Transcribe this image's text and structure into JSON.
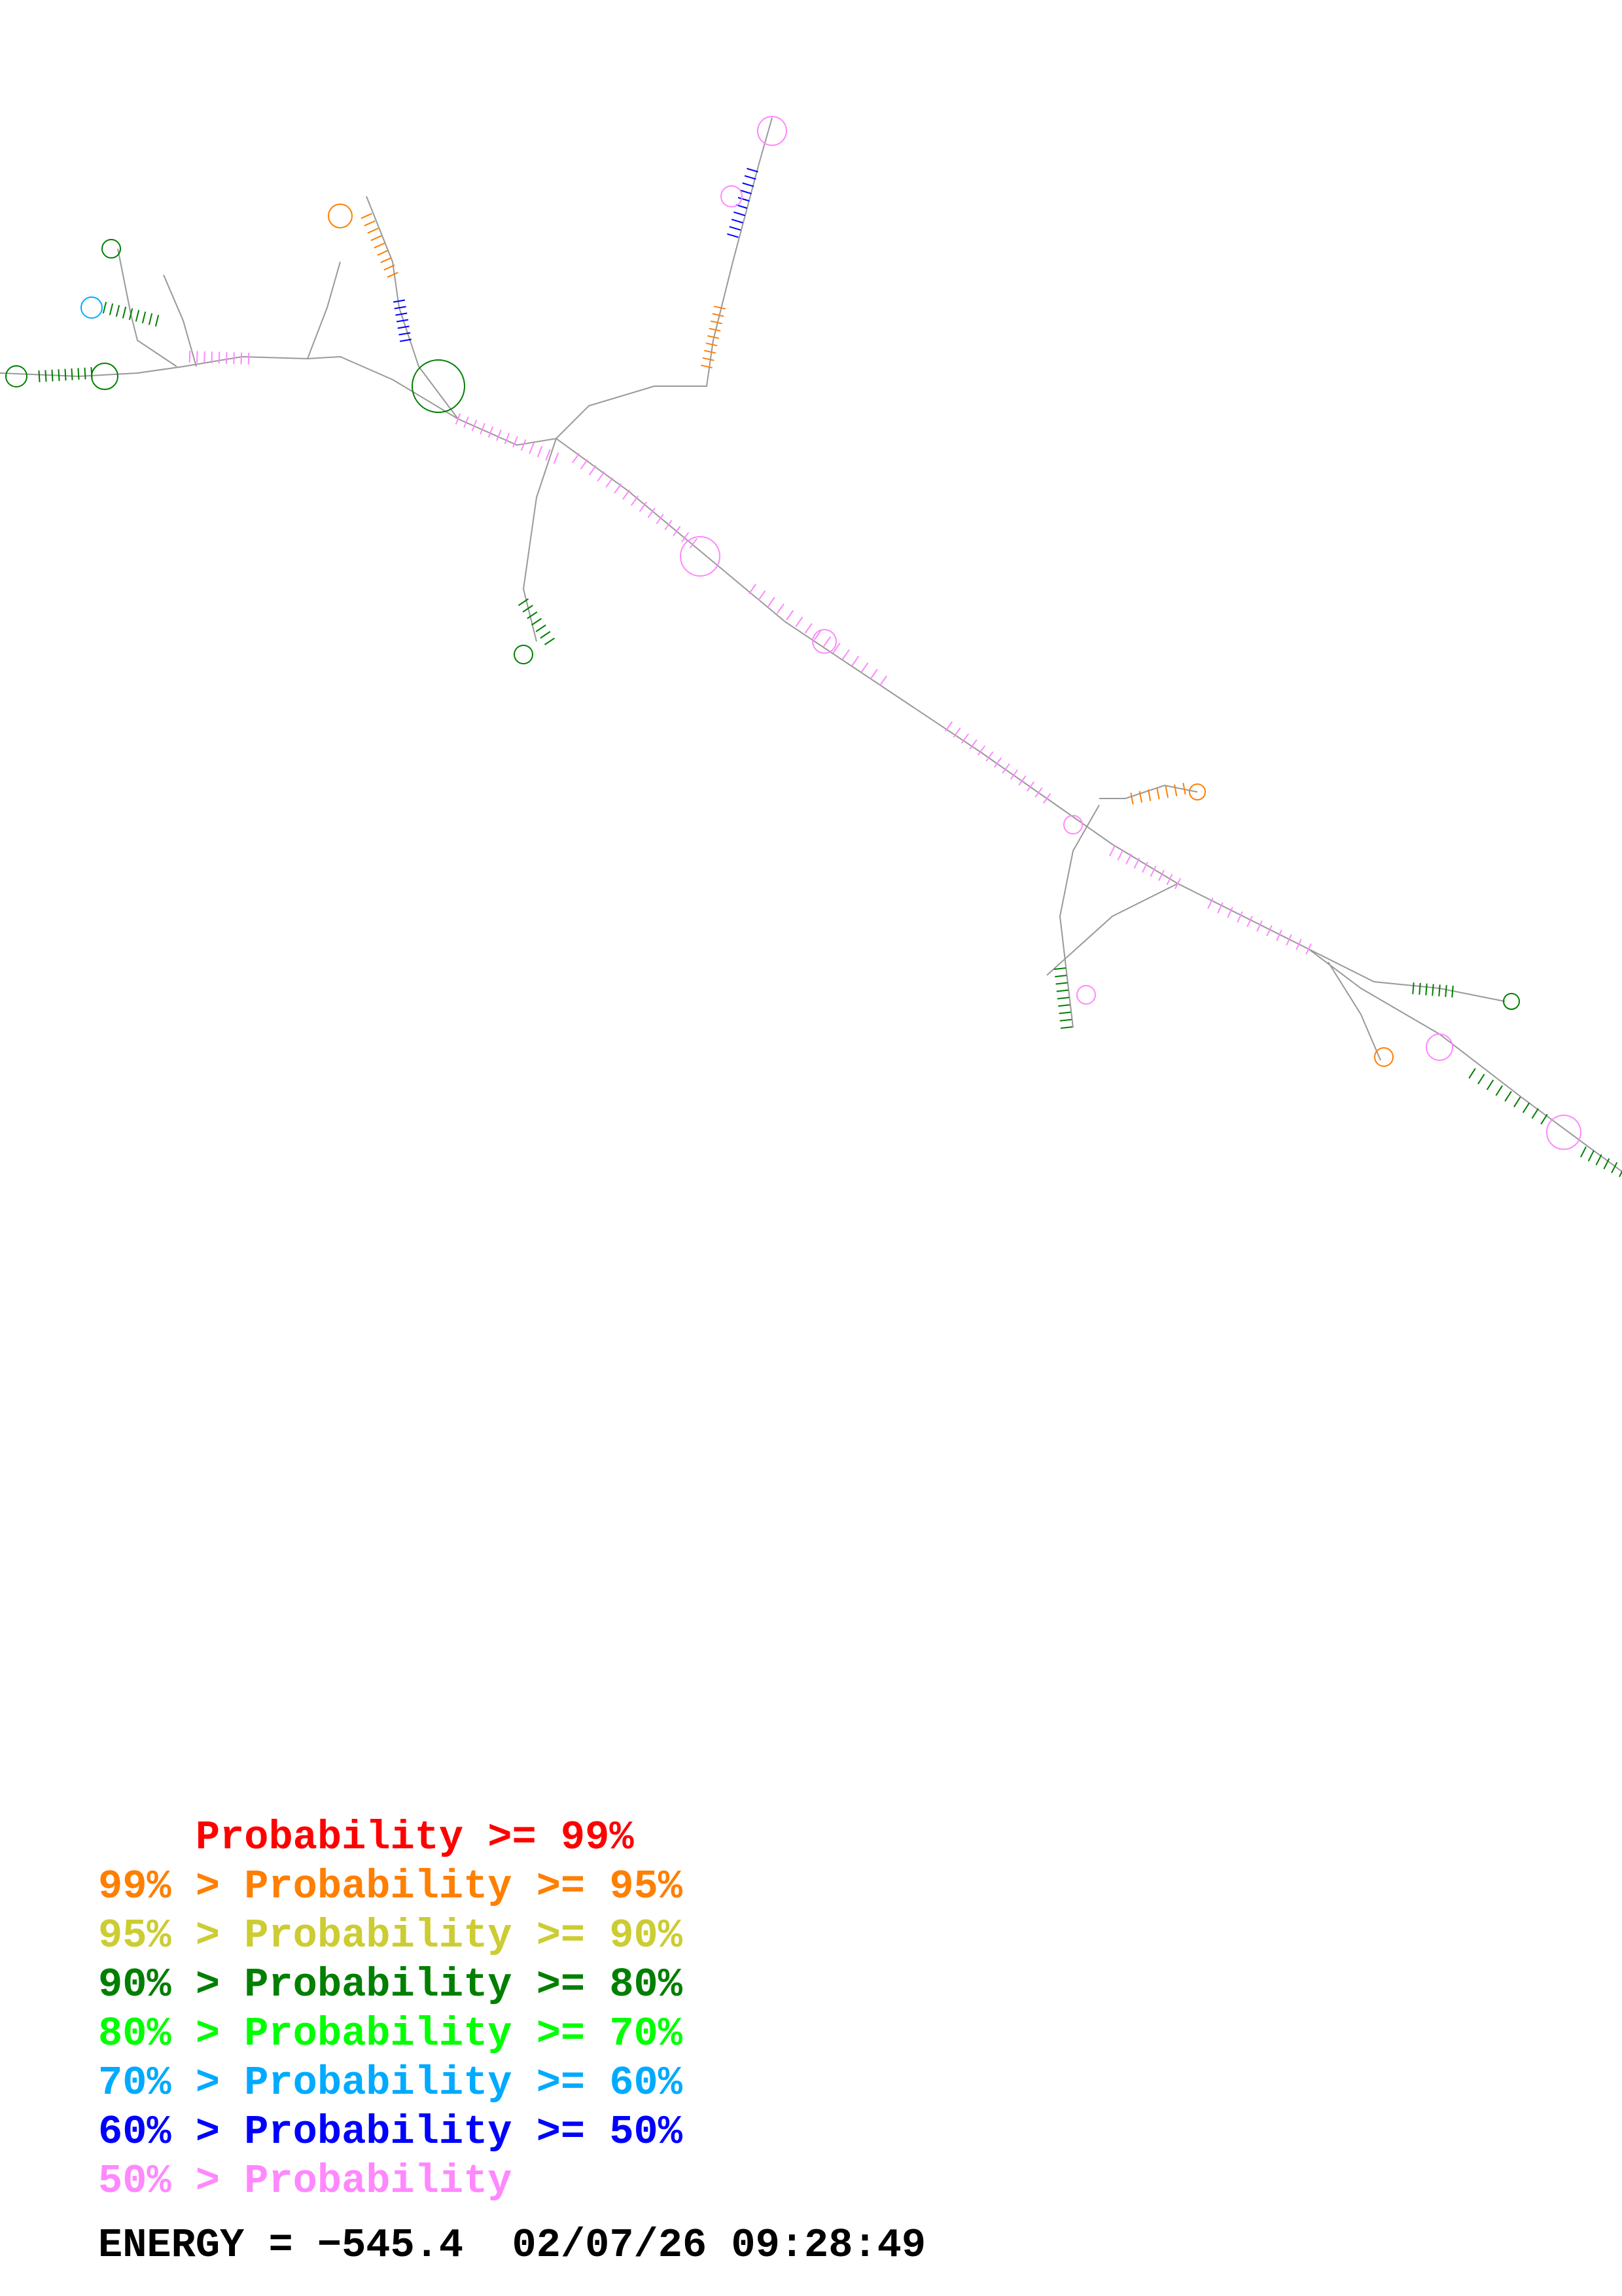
{
  "legend": [
    {
      "prefix": "    ",
      "label": "Probability >= 99%",
      "color": "#ff0000"
    },
    {
      "prefix": "99% > ",
      "label": "Probability >= 95%",
      "color": "#ff7f00"
    },
    {
      "prefix": "95% > ",
      "label": "Probability >= 90%",
      "color": "#cccc33"
    },
    {
      "prefix": "90% > ",
      "label": "Probability >= 80%",
      "color": "#007f00"
    },
    {
      "prefix": "80% > ",
      "label": "Probability >= 70%",
      "color": "#00ff00"
    },
    {
      "prefix": "70% > ",
      "label": "Probability >= 60%",
      "color": "#00aaff"
    },
    {
      "prefix": "60% > ",
      "label": "Probability >= 50%",
      "color": "#0000ff"
    },
    {
      "prefix": "50% > ",
      "label": "Probability",
      "color": "#ff88ff"
    }
  ],
  "footer": {
    "energy_label": "ENERGY = ",
    "energy_value": "−545.4",
    "timestamp": "02/07/26 09:28:49"
  },
  "structure": {
    "backbone_color": "#999999",
    "base_colors": [
      "#ff0000",
      "#ff7f00",
      "#cccc33",
      "#007f00",
      "#00ff00",
      "#00aaff",
      "#0000ff",
      "#ff88ff"
    ]
  }
}
